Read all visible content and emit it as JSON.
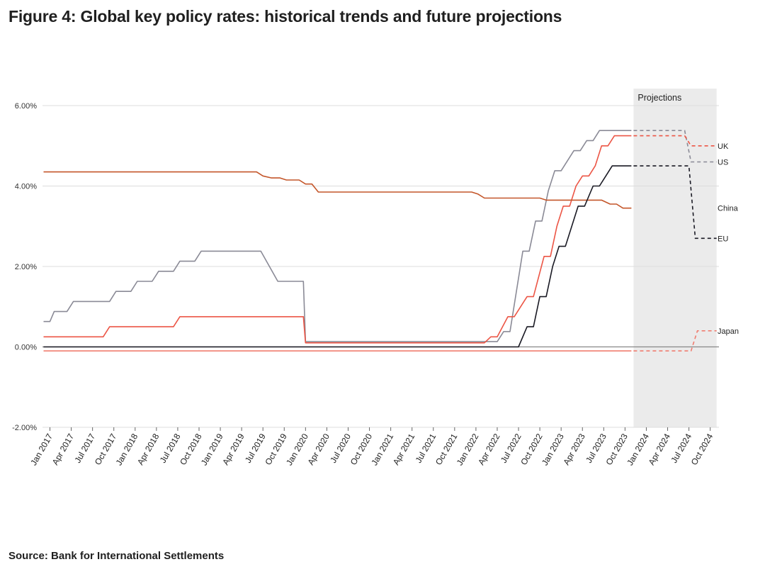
{
  "title": "Figure 4: Global key policy rates: historical trends and future projections",
  "source": "Source: Bank for International Settlements",
  "chart_data": {
    "type": "line",
    "ylim": [
      -2.0,
      6.0
    ],
    "yticks": [
      {
        "value": 6,
        "label": "6.00%"
      },
      {
        "value": 4,
        "label": "4.00%"
      },
      {
        "value": 2,
        "label": "2.00%"
      },
      {
        "value": 0,
        "label": "0.00%"
      },
      {
        "value": -2,
        "label": "-2.00%"
      }
    ],
    "xlim": [
      0,
      31.8
    ],
    "xticks": [
      "Jan 2017",
      "Apr 2017",
      "Jul 2017",
      "Oct 2017",
      "Jan 2018",
      "Apr 2018",
      "Jul 2018",
      "Oct 2018",
      "Jan 2019",
      "Apr 2019",
      "Jul 2019",
      "Oct 2019",
      "Jan 2020",
      "Apr 2020",
      "Jul 2020",
      "Oct 2020",
      "Jan 2021",
      "Apr 2021",
      "Jul 2021",
      "Oct 2021",
      "Jan 2022",
      "Apr 2022",
      "Jul 2022",
      "Oct 2022",
      "Jan 2023",
      "Apr 2023",
      "Jul 2023",
      "Oct 2023",
      "Jan 2024",
      "Apr 2024",
      "Jul 2024",
      "Oct 2024"
    ],
    "x_unit": "quarters since Jan 2017",
    "projection": {
      "label": "Projections",
      "start": 27.4,
      "end": 31.3
    },
    "series": [
      {
        "name": "US",
        "color": "#8a8a96",
        "points": [
          [
            -0.3,
            0.63
          ],
          [
            0,
            0.63
          ],
          [
            0.2,
            0.88
          ],
          [
            0.8,
            0.88
          ],
          [
            1.1,
            1.13
          ],
          [
            2.8,
            1.13
          ],
          [
            3.1,
            1.38
          ],
          [
            3.8,
            1.38
          ],
          [
            4.1,
            1.63
          ],
          [
            4.8,
            1.63
          ],
          [
            5.1,
            1.88
          ],
          [
            5.8,
            1.88
          ],
          [
            6.1,
            2.13
          ],
          [
            6.8,
            2.13
          ],
          [
            7.1,
            2.38
          ],
          [
            9.9,
            2.38
          ],
          [
            10.7,
            1.63
          ],
          [
            11.9,
            1.63
          ],
          [
            12.0,
            0.13
          ],
          [
            21.0,
            0.13
          ],
          [
            21.3,
            0.38
          ],
          [
            21.6,
            0.38
          ],
          [
            22.2,
            2.38
          ],
          [
            22.5,
            2.38
          ],
          [
            22.8,
            3.13
          ],
          [
            23.1,
            3.13
          ],
          [
            23.4,
            3.88
          ],
          [
            23.7,
            4.38
          ],
          [
            24.0,
            4.38
          ],
          [
            24.6,
            4.88
          ],
          [
            24.9,
            4.88
          ],
          [
            25.2,
            5.13
          ],
          [
            25.5,
            5.13
          ],
          [
            25.8,
            5.38
          ],
          [
            27.3,
            5.38
          ]
        ],
        "projection": [
          [
            27.4,
            5.38
          ],
          [
            29.8,
            5.38
          ],
          [
            30.1,
            4.6
          ],
          [
            31.3,
            4.6
          ]
        ],
        "label_value": 4.6
      },
      {
        "name": "UK",
        "color": "#ec5545",
        "points": [
          [
            -0.3,
            0.25
          ],
          [
            2.5,
            0.25
          ],
          [
            2.8,
            0.5
          ],
          [
            5.8,
            0.5
          ],
          [
            6.1,
            0.75
          ],
          [
            11.9,
            0.75
          ],
          [
            12.0,
            0.1
          ],
          [
            20.4,
            0.1
          ],
          [
            20.7,
            0.25
          ],
          [
            21.0,
            0.25
          ],
          [
            21.5,
            0.75
          ],
          [
            21.8,
            0.75
          ],
          [
            22.4,
            1.25
          ],
          [
            22.7,
            1.25
          ],
          [
            23.2,
            2.25
          ],
          [
            23.5,
            2.25
          ],
          [
            23.8,
            3.0
          ],
          [
            24.1,
            3.5
          ],
          [
            24.4,
            3.5
          ],
          [
            24.7,
            4.0
          ],
          [
            25.0,
            4.25
          ],
          [
            25.3,
            4.25
          ],
          [
            25.6,
            4.5
          ],
          [
            25.9,
            5.0
          ],
          [
            26.2,
            5.0
          ],
          [
            26.5,
            5.25
          ],
          [
            27.3,
            5.25
          ]
        ],
        "projection": [
          [
            27.4,
            5.25
          ],
          [
            29.8,
            5.25
          ],
          [
            30.1,
            5.0
          ],
          [
            31.3,
            5.0
          ]
        ],
        "label_value": 5.0
      },
      {
        "name": "China",
        "color": "#c4562a",
        "points": [
          [
            -0.3,
            4.35
          ],
          [
            9.7,
            4.35
          ],
          [
            10.0,
            4.25
          ],
          [
            10.4,
            4.2
          ],
          [
            10.8,
            4.2
          ],
          [
            11.1,
            4.15
          ],
          [
            11.7,
            4.15
          ],
          [
            12.0,
            4.05
          ],
          [
            12.3,
            4.05
          ],
          [
            12.6,
            3.85
          ],
          [
            19.8,
            3.85
          ],
          [
            20.1,
            3.8
          ],
          [
            20.4,
            3.7
          ],
          [
            23.0,
            3.7
          ],
          [
            23.3,
            3.65
          ],
          [
            25.9,
            3.65
          ],
          [
            26.3,
            3.55
          ],
          [
            26.6,
            3.55
          ],
          [
            26.9,
            3.45
          ],
          [
            27.3,
            3.45
          ]
        ],
        "projection": [],
        "label_value": 3.45
      },
      {
        "name": "EU",
        "color": "#1a1a24",
        "points": [
          [
            -0.3,
            0.0
          ],
          [
            22.0,
            0.0
          ],
          [
            22.4,
            0.5
          ],
          [
            22.7,
            0.5
          ],
          [
            23.0,
            1.25
          ],
          [
            23.3,
            1.25
          ],
          [
            23.6,
            2.0
          ],
          [
            23.9,
            2.5
          ],
          [
            24.2,
            2.5
          ],
          [
            24.5,
            3.0
          ],
          [
            24.8,
            3.5
          ],
          [
            25.1,
            3.5
          ],
          [
            25.5,
            4.0
          ],
          [
            25.8,
            4.0
          ],
          [
            26.1,
            4.25
          ],
          [
            26.4,
            4.5
          ],
          [
            27.3,
            4.5
          ]
        ],
        "projection": [
          [
            27.4,
            4.5
          ],
          [
            30.0,
            4.5
          ],
          [
            30.3,
            2.7
          ],
          [
            31.3,
            2.7
          ]
        ],
        "label_value": 2.7
      },
      {
        "name": "Japan",
        "color": "#f07d70",
        "points": [
          [
            -0.3,
            -0.1
          ],
          [
            27.3,
            -0.1
          ]
        ],
        "projection": [
          [
            27.4,
            -0.1
          ],
          [
            30.1,
            -0.1
          ],
          [
            30.4,
            0.4
          ],
          [
            31.3,
            0.4
          ]
        ],
        "label_value": 0.4
      }
    ]
  }
}
